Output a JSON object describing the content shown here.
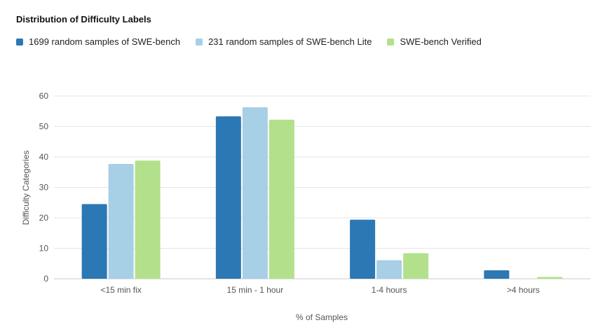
{
  "chart_data": {
    "type": "bar",
    "title": "Distribution of Difficulty Labels",
    "xlabel": "% of Samples",
    "ylabel": "Difficulty Categories",
    "categories": [
      "<15 min fix",
      "15 min - 1 hour",
      "1-4 hours",
      ">4 hours"
    ],
    "series": [
      {
        "name": "1699 random samples of SWE-bench",
        "color": "#2b78b4",
        "values": [
          24.5,
          53.3,
          19.4,
          2.8
        ]
      },
      {
        "name": "231 random samples of SWE-bench Lite",
        "color": "#a7cfe5",
        "values": [
          37.7,
          56.3,
          6.1,
          0
        ]
      },
      {
        "name": "SWE-bench Verified",
        "color": "#b3e08b",
        "values": [
          38.8,
          52.2,
          8.4,
          0.6
        ]
      }
    ],
    "ylim": [
      0,
      60
    ],
    "yticks": [
      0,
      10,
      20,
      30,
      40,
      50,
      60
    ],
    "grid": true,
    "legend_position": "top-left"
  }
}
